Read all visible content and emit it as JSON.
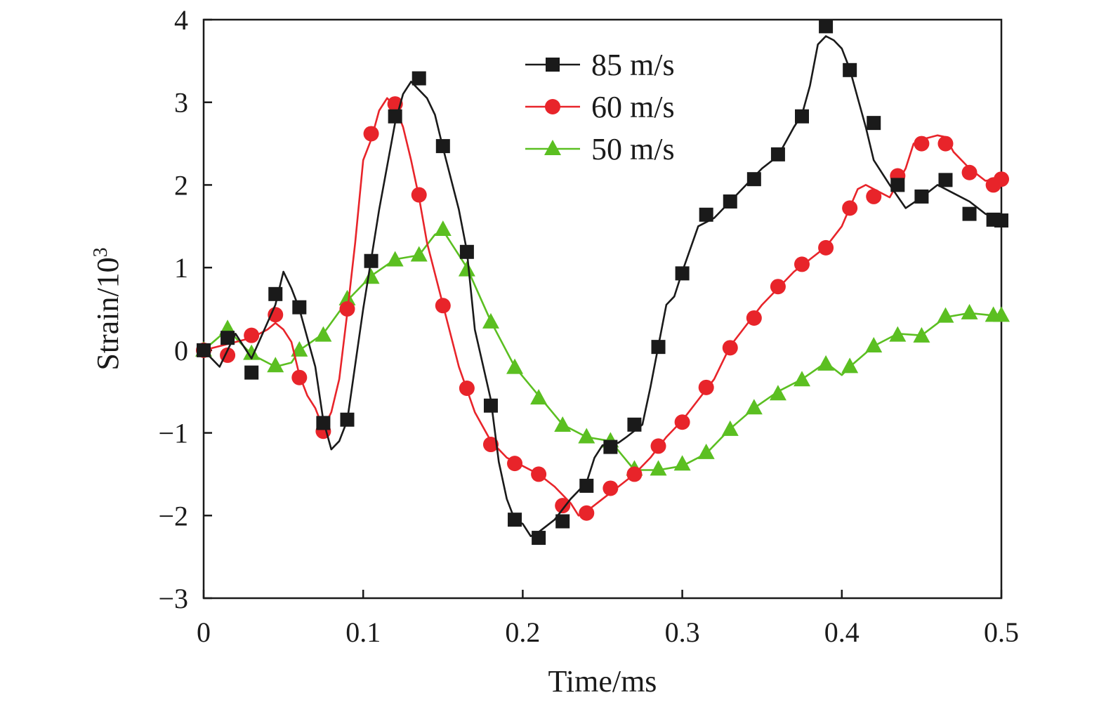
{
  "chart_data": {
    "type": "line",
    "xlabel": "Time/ms",
    "ylabel": "Strain/10",
    "ylabel_sup": "3",
    "xlim": [
      0,
      0.5
    ],
    "ylim": [
      -3,
      4
    ],
    "xticks": [
      "0",
      "0.1",
      "0.2",
      "0.3",
      "0.4",
      "0.5"
    ],
    "yticks": [
      "−3",
      "−2",
      "−1",
      "0",
      "1",
      "2",
      "3",
      "4"
    ],
    "grid": false,
    "legend_position": "top-center",
    "series": [
      {
        "name": "85 m/s",
        "color": "#1a1a1a",
        "marker": "square",
        "line": [
          [
            0,
            0
          ],
          [
            0.01,
            -0.2
          ],
          [
            0.02,
            0.2
          ],
          [
            0.03,
            -0.1
          ],
          [
            0.045,
            0.55
          ],
          [
            0.05,
            0.95
          ],
          [
            0.055,
            0.75
          ],
          [
            0.06,
            0.5
          ],
          [
            0.07,
            -0.2
          ],
          [
            0.075,
            -0.85
          ],
          [
            0.08,
            -1.2
          ],
          [
            0.085,
            -1.1
          ],
          [
            0.09,
            -0.85
          ],
          [
            0.1,
            0.5
          ],
          [
            0.105,
            1.1
          ],
          [
            0.11,
            1.7
          ],
          [
            0.12,
            2.75
          ],
          [
            0.125,
            3.1
          ],
          [
            0.13,
            3.25
          ],
          [
            0.14,
            3.05
          ],
          [
            0.145,
            2.85
          ],
          [
            0.15,
            2.45
          ],
          [
            0.16,
            1.7
          ],
          [
            0.165,
            1.2
          ],
          [
            0.17,
            0.25
          ],
          [
            0.18,
            -0.6
          ],
          [
            0.185,
            -1.35
          ],
          [
            0.19,
            -1.8
          ],
          [
            0.195,
            -2.05
          ],
          [
            0.2,
            -2.1
          ],
          [
            0.205,
            -2.25
          ],
          [
            0.21,
            -2.2
          ],
          [
            0.22,
            -2.05
          ],
          [
            0.23,
            -1.8
          ],
          [
            0.24,
            -1.6
          ],
          [
            0.245,
            -1.3
          ],
          [
            0.25,
            -1.15
          ],
          [
            0.26,
            -1.12
          ],
          [
            0.265,
            -1.05
          ],
          [
            0.275,
            -0.9
          ],
          [
            0.28,
            -0.45
          ],
          [
            0.285,
            0.05
          ],
          [
            0.29,
            0.55
          ],
          [
            0.295,
            0.65
          ],
          [
            0.3,
            0.95
          ],
          [
            0.31,
            1.5
          ],
          [
            0.32,
            1.6
          ],
          [
            0.33,
            1.8
          ],
          [
            0.34,
            2.0
          ],
          [
            0.35,
            2.2
          ],
          [
            0.36,
            2.35
          ],
          [
            0.37,
            2.7
          ],
          [
            0.375,
            2.85
          ],
          [
            0.38,
            3.2
          ],
          [
            0.385,
            3.7
          ],
          [
            0.39,
            3.8
          ],
          [
            0.395,
            3.75
          ],
          [
            0.4,
            3.65
          ],
          [
            0.405,
            3.4
          ],
          [
            0.41,
            3.05
          ],
          [
            0.415,
            2.7
          ],
          [
            0.42,
            2.3
          ],
          [
            0.43,
            2.0
          ],
          [
            0.44,
            1.72
          ],
          [
            0.45,
            1.85
          ],
          [
            0.46,
            2.0
          ],
          [
            0.47,
            1.9
          ],
          [
            0.48,
            1.8
          ],
          [
            0.49,
            1.65
          ],
          [
            0.5,
            1.58
          ]
        ],
        "markers": [
          [
            0,
            0
          ],
          [
            0.015,
            0.15
          ],
          [
            0.03,
            -0.27
          ],
          [
            0.045,
            0.68
          ],
          [
            0.06,
            0.52
          ],
          [
            0.075,
            -0.88
          ],
          [
            0.09,
            -0.84
          ],
          [
            0.105,
            1.08
          ],
          [
            0.12,
            2.83
          ],
          [
            0.135,
            3.29
          ],
          [
            0.15,
            2.47
          ],
          [
            0.165,
            1.19
          ],
          [
            0.18,
            -0.67
          ],
          [
            0.195,
            -2.05
          ],
          [
            0.21,
            -2.27
          ],
          [
            0.225,
            -2.07
          ],
          [
            0.24,
            -1.64
          ],
          [
            0.255,
            -1.17
          ],
          [
            0.27,
            -0.9
          ],
          [
            0.285,
            0.04
          ],
          [
            0.3,
            0.93
          ],
          [
            0.315,
            1.64
          ],
          [
            0.33,
            1.8
          ],
          [
            0.345,
            2.07
          ],
          [
            0.36,
            2.37
          ],
          [
            0.375,
            2.83
          ],
          [
            0.39,
            3.92
          ],
          [
            0.405,
            3.39
          ],
          [
            0.42,
            2.75
          ],
          [
            0.435,
            2.0
          ],
          [
            0.45,
            1.86
          ],
          [
            0.465,
            2.06
          ],
          [
            0.48,
            1.65
          ],
          [
            0.495,
            1.58
          ],
          [
            0.5,
            1.57
          ]
        ]
      },
      {
        "name": "60 m/s",
        "color": "#e8242a",
        "marker": "circle",
        "line": [
          [
            0,
            0
          ],
          [
            0.01,
            0.05
          ],
          [
            0.02,
            0.1
          ],
          [
            0.03,
            0.15
          ],
          [
            0.04,
            0.25
          ],
          [
            0.045,
            0.33
          ],
          [
            0.05,
            0.25
          ],
          [
            0.055,
            0.1
          ],
          [
            0.06,
            -0.3
          ],
          [
            0.065,
            -0.55
          ],
          [
            0.07,
            -0.7
          ],
          [
            0.075,
            -0.95
          ],
          [
            0.08,
            -0.75
          ],
          [
            0.085,
            -0.35
          ],
          [
            0.09,
            0.45
          ],
          [
            0.095,
            1.3
          ],
          [
            0.1,
            2.3
          ],
          [
            0.105,
            2.55
          ],
          [
            0.11,
            2.9
          ],
          [
            0.115,
            3.05
          ],
          [
            0.12,
            2.95
          ],
          [
            0.125,
            2.7
          ],
          [
            0.13,
            2.3
          ],
          [
            0.135,
            1.85
          ],
          [
            0.14,
            1.3
          ],
          [
            0.15,
            0.55
          ],
          [
            0.16,
            -0.2
          ],
          [
            0.17,
            -0.75
          ],
          [
            0.18,
            -1.1
          ],
          [
            0.19,
            -1.3
          ],
          [
            0.2,
            -1.4
          ],
          [
            0.21,
            -1.5
          ],
          [
            0.22,
            -1.65
          ],
          [
            0.23,
            -1.85
          ],
          [
            0.235,
            -2.0
          ],
          [
            0.24,
            -1.95
          ],
          [
            0.25,
            -1.8
          ],
          [
            0.26,
            -1.65
          ],
          [
            0.27,
            -1.5
          ],
          [
            0.28,
            -1.3
          ],
          [
            0.29,
            -1.05
          ],
          [
            0.3,
            -0.85
          ],
          [
            0.31,
            -0.6
          ],
          [
            0.32,
            -0.35
          ],
          [
            0.33,
            0.05
          ],
          [
            0.34,
            0.3
          ],
          [
            0.35,
            0.55
          ],
          [
            0.36,
            0.75
          ],
          [
            0.37,
            0.95
          ],
          [
            0.38,
            1.1
          ],
          [
            0.39,
            1.25
          ],
          [
            0.4,
            1.5
          ],
          [
            0.41,
            1.95
          ],
          [
            0.415,
            2.0
          ],
          [
            0.42,
            1.95
          ],
          [
            0.43,
            1.85
          ],
          [
            0.44,
            2.2
          ],
          [
            0.445,
            2.5
          ],
          [
            0.45,
            2.55
          ],
          [
            0.46,
            2.6
          ],
          [
            0.465,
            2.58
          ],
          [
            0.47,
            2.4
          ],
          [
            0.48,
            2.2
          ],
          [
            0.49,
            2.05
          ],
          [
            0.5,
            2.08
          ]
        ],
        "markers": [
          [
            0,
            0
          ],
          [
            0.015,
            -0.06
          ],
          [
            0.03,
            0.18
          ],
          [
            0.045,
            0.43
          ],
          [
            0.06,
            -0.33
          ],
          [
            0.075,
            -0.98
          ],
          [
            0.09,
            0.5
          ],
          [
            0.105,
            2.62
          ],
          [
            0.12,
            2.98
          ],
          [
            0.135,
            1.88
          ],
          [
            0.15,
            0.54
          ],
          [
            0.165,
            -0.46
          ],
          [
            0.18,
            -1.14
          ],
          [
            0.195,
            -1.37
          ],
          [
            0.21,
            -1.5
          ],
          [
            0.225,
            -1.88
          ],
          [
            0.24,
            -1.97
          ],
          [
            0.255,
            -1.67
          ],
          [
            0.27,
            -1.5
          ],
          [
            0.285,
            -1.16
          ],
          [
            0.3,
            -0.87
          ],
          [
            0.315,
            -0.45
          ],
          [
            0.33,
            0.03
          ],
          [
            0.345,
            0.39
          ],
          [
            0.36,
            0.77
          ],
          [
            0.375,
            1.04
          ],
          [
            0.39,
            1.24
          ],
          [
            0.405,
            1.72
          ],
          [
            0.42,
            1.86
          ],
          [
            0.435,
            2.11
          ],
          [
            0.45,
            2.5
          ],
          [
            0.465,
            2.5
          ],
          [
            0.48,
            2.15
          ],
          [
            0.495,
            2.0
          ],
          [
            0.5,
            2.07
          ]
        ]
      },
      {
        "name": "50 m/s",
        "color": "#5bbf21",
        "marker": "triangle",
        "line": [
          [
            0,
            0
          ],
          [
            0.015,
            0.25
          ],
          [
            0.03,
            -0.05
          ],
          [
            0.045,
            -0.2
          ],
          [
            0.055,
            -0.15
          ],
          [
            0.06,
            0.0
          ],
          [
            0.075,
            0.2
          ],
          [
            0.09,
            0.6
          ],
          [
            0.105,
            0.9
          ],
          [
            0.12,
            1.1
          ],
          [
            0.135,
            1.15
          ],
          [
            0.145,
            1.4
          ],
          [
            0.15,
            1.45
          ],
          [
            0.165,
            1.0
          ],
          [
            0.18,
            0.35
          ],
          [
            0.195,
            -0.2
          ],
          [
            0.21,
            -0.55
          ],
          [
            0.225,
            -0.9
          ],
          [
            0.24,
            -1.05
          ],
          [
            0.255,
            -1.1
          ],
          [
            0.27,
            -1.45
          ],
          [
            0.285,
            -1.45
          ],
          [
            0.3,
            -1.4
          ],
          [
            0.315,
            -1.25
          ],
          [
            0.33,
            -0.95
          ],
          [
            0.345,
            -0.7
          ],
          [
            0.36,
            -0.5
          ],
          [
            0.375,
            -0.35
          ],
          [
            0.39,
            -0.15
          ],
          [
            0.4,
            -0.3
          ],
          [
            0.405,
            -0.2
          ],
          [
            0.42,
            0.05
          ],
          [
            0.435,
            0.2
          ],
          [
            0.45,
            0.18
          ],
          [
            0.465,
            0.4
          ],
          [
            0.48,
            0.45
          ],
          [
            0.495,
            0.42
          ],
          [
            0.5,
            0.42
          ]
        ],
        "markers": [
          [
            0,
            0
          ],
          [
            0.015,
            0.26
          ],
          [
            0.03,
            -0.04
          ],
          [
            0.045,
            -0.19
          ],
          [
            0.06,
            0.0
          ],
          [
            0.075,
            0.18
          ],
          [
            0.09,
            0.62
          ],
          [
            0.105,
            0.88
          ],
          [
            0.12,
            1.09
          ],
          [
            0.135,
            1.15
          ],
          [
            0.15,
            1.46
          ],
          [
            0.165,
            0.97
          ],
          [
            0.18,
            0.34
          ],
          [
            0.195,
            -0.21
          ],
          [
            0.21,
            -0.58
          ],
          [
            0.225,
            -0.91
          ],
          [
            0.24,
            -1.05
          ],
          [
            0.255,
            -1.1
          ],
          [
            0.27,
            -1.44
          ],
          [
            0.285,
            -1.44
          ],
          [
            0.3,
            -1.38
          ],
          [
            0.315,
            -1.24
          ],
          [
            0.33,
            -0.96
          ],
          [
            0.345,
            -0.7
          ],
          [
            0.36,
            -0.53
          ],
          [
            0.375,
            -0.36
          ],
          [
            0.39,
            -0.17
          ],
          [
            0.405,
            -0.2
          ],
          [
            0.42,
            0.05
          ],
          [
            0.435,
            0.18
          ],
          [
            0.45,
            0.17
          ],
          [
            0.465,
            0.41
          ],
          [
            0.48,
            0.45
          ],
          [
            0.495,
            0.42
          ],
          [
            0.5,
            0.42
          ]
        ]
      }
    ]
  }
}
